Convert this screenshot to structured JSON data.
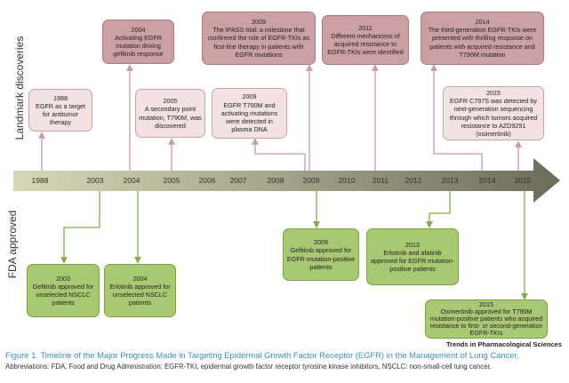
{
  "side_labels": {
    "top": "Landmark discoveries",
    "bottom": "FDA approved"
  },
  "years": [
    "1988",
    "2003",
    "2004",
    "2005",
    "2006",
    "2007",
    "2008",
    "2009",
    "2010",
    "2011",
    "2012",
    "2013",
    "2014",
    "2015"
  ],
  "discoveries": [
    {
      "year": "1988",
      "text": "EGFR as a target for antitumor therapy"
    },
    {
      "year": "2004",
      "text": "Activating EGFR mutation driving gefitinib response"
    },
    {
      "year": "2005",
      "text": "A secondary point mutation, T790M, was discovered"
    },
    {
      "year": "2009",
      "text": "The IPASS trial: a milestone that confirmed the role of EGFR-TKIs as first-line therapy in patients with EGFR mutations"
    },
    {
      "year": "2009",
      "text": "EGFR T790M and activating mutations were detected in plasma DNA"
    },
    {
      "year": "2011",
      "text": "Different mechanisms of acquired resistance to EGFR-TKIs were identified"
    },
    {
      "year": "2014",
      "text": "The third-generation EGFR-TKIs were presented with thrilling response on patients with acquired resistance and T790M mutation"
    },
    {
      "year": "2015",
      "text": "EGFR C797S was detected by next-generation sequencing through which tumors acquired resistance to AZD9291 (osimertinib)"
    }
  ],
  "approvals": [
    {
      "year": "2003",
      "text": "Gefitinib approved for unselected NSCLC patients"
    },
    {
      "year": "2004",
      "text": "Erlotinib approved for unselected NSCLC patients"
    },
    {
      "year": "2009",
      "text": "Gefitinib approved for EGFR mutation-positive patients"
    },
    {
      "year": "2013",
      "text": "Erlotinib and afatinib approved for EGFR mutation-positive patients"
    },
    {
      "year": "2015",
      "text": "Osimertinib approved for T790M mutation-positive patients who acquired resistance to first- or second-generation EGFR-TKIs"
    }
  ],
  "source": "Trends in Pharmacological Sciences",
  "caption": "Figure 1. Timeline of the Major Progress Made in Targeting Epidermal Growth Factor Receptor (EGFR) in the Management of Lung Cancer.",
  "abbreviations": "Abbreviations: FDA, Food and Drug Administration; EGFR-TKI, epidermal growth factor receptor tyrosine kinase inhibitors, NSCLC: non-small-cell lung cancer.",
  "colors": {
    "major_discovery": "#caa0a3",
    "discovery": "#f2e2e3",
    "fda": "#a9c872",
    "caption": "#3f8fc4"
  }
}
